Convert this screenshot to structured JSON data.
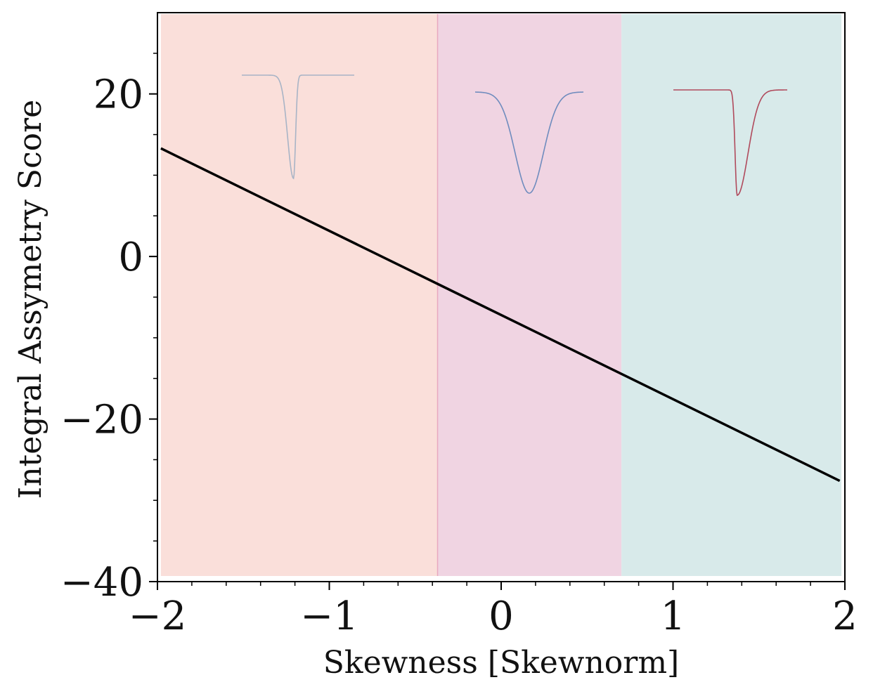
{
  "chart_data": {
    "type": "line",
    "title": "",
    "xlabel": "Skewness [Skewnorm]",
    "ylabel": "Integral Assymetry Score",
    "xlim": [
      -2,
      2
    ],
    "ylim": [
      -40,
      30
    ],
    "x_ticks": [
      -2,
      -1,
      0,
      1,
      2
    ],
    "x_tick_labels": [
      "−2",
      "−1",
      "0",
      "1",
      "2"
    ],
    "y_ticks": [
      -40,
      -20,
      0,
      20
    ],
    "y_tick_labels": [
      "−40",
      "−20",
      "0",
      "20"
    ],
    "grid": false,
    "series": [
      {
        "name": "Integral Assymetry Score",
        "color": "#000000",
        "x": [
          -1.98,
          1.97
        ],
        "y": [
          13.3,
          -27.6
        ]
      }
    ],
    "regions": [
      {
        "name": "left-skew",
        "x_range": [
          -1.98,
          -0.37
        ],
        "color": "#fadfda"
      },
      {
        "name": "symmetric",
        "x_range": [
          -0.37,
          0.7
        ],
        "color": "#f0d4e2"
      },
      {
        "name": "right-skew",
        "x_range": [
          0.7,
          1.98
        ],
        "color": "#d8eaea"
      }
    ],
    "insets": [
      {
        "name": "left-skewed-profile",
        "color": "#a8b4c6"
      },
      {
        "name": "symmetric-profile",
        "color": "#6f8cbe"
      },
      {
        "name": "right-skewed-profile",
        "color": "#b04a5c"
      }
    ]
  }
}
